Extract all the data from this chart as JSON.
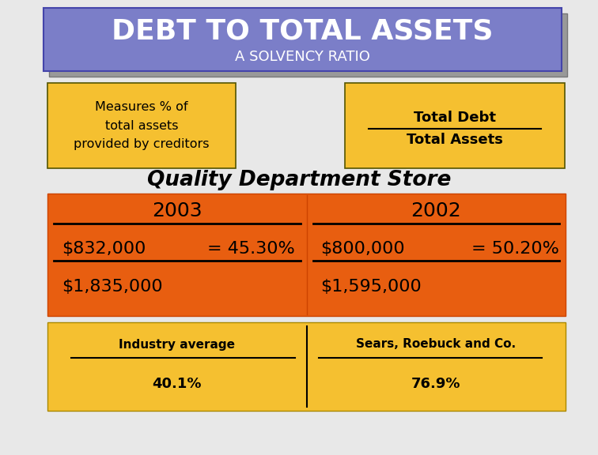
{
  "title": "DEBT TO TOTAL ASSETS",
  "subtitle": "A SOLVENCY RATIO",
  "title_bg": "#7b7ec8",
  "title_shadow": "#999999",
  "title_color": "#ffffff",
  "subtitle_color": "#ffffff",
  "box1_text": "Measures % of\ntotal assets\nprovided by creditors",
  "box2_numerator": "Total Debt",
  "box2_denominator": "Total Assets",
  "box_bg": "#f5c030",
  "orange_bg": "#e85e10",
  "yellow_bottom_bg": "#f5c030",
  "section_title": "Quality Department Store",
  "col1_year": "2003",
  "col1_num": "$832,000",
  "col1_den": "$1,835,000",
  "col1_pct": "= 45.30%",
  "col2_year": "2002",
  "col2_num": "$800,000",
  "col2_den": "$1,595,000",
  "col2_pct": "= 50.20%",
  "industry_label": "Industry average",
  "industry_val": "40.1%",
  "sears_label": "Sears, Roebuck and Co.",
  "sears_val": "76.9%",
  "bg_color": "#e8e8e8",
  "fig_w": 7.56,
  "fig_h": 5.76,
  "dpi": 100
}
